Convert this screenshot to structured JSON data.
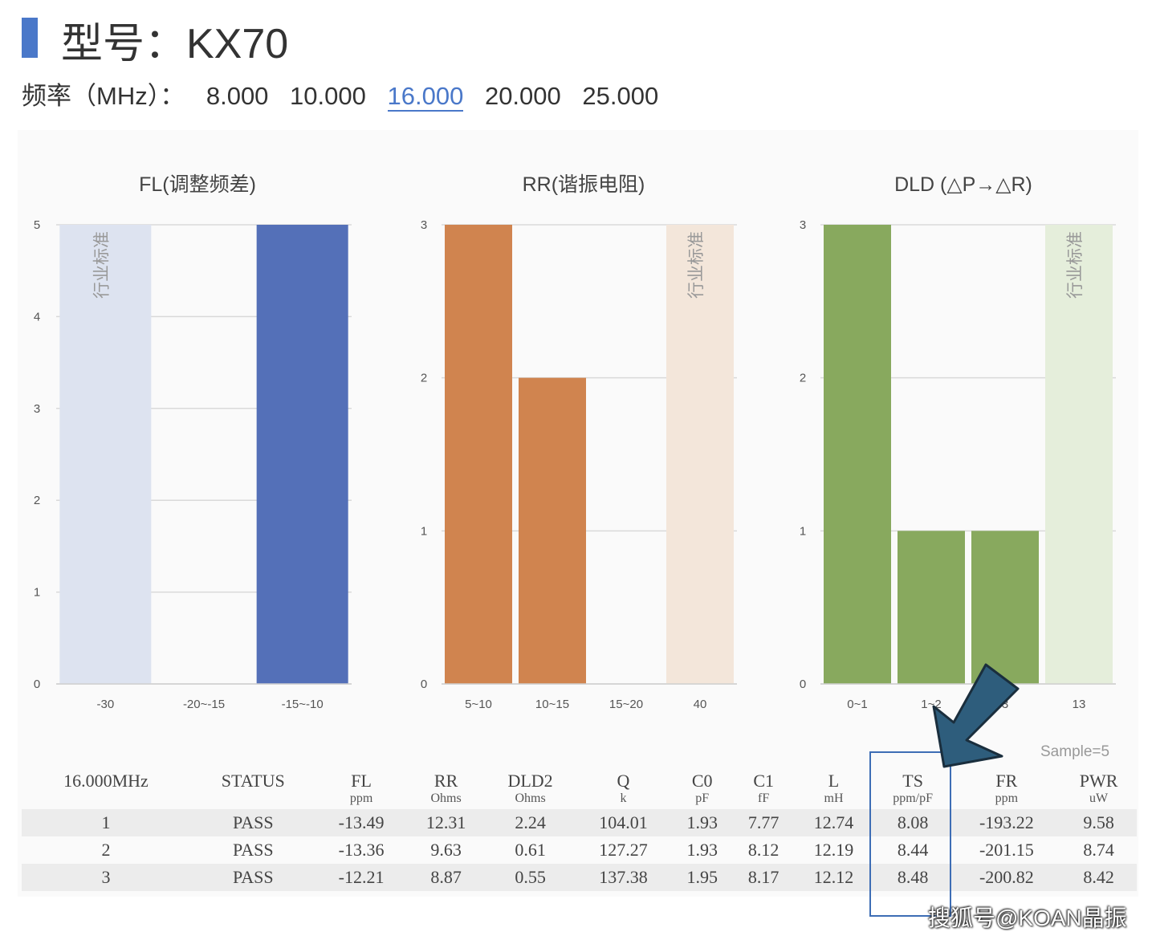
{
  "header": {
    "title": "型号：KX70",
    "freq_label": "频率（MHz）：",
    "frequencies": [
      "8.000",
      "10.000",
      "16.000",
      "20.000",
      "25.000"
    ],
    "selected_frequency": "16.000"
  },
  "chart_data": [
    {
      "type": "bar",
      "title": "FL(调整频差)",
      "categories": [
        "-30",
        "-20~-15",
        "-15~-10"
      ],
      "values": [
        5,
        0,
        5
      ],
      "ylim": [
        0,
        5
      ],
      "yticks": [
        "0",
        "1",
        "2",
        "3",
        "4",
        "5"
      ],
      "color": "#5470b8",
      "standard_category": "-30",
      "standard_label": "行业标准",
      "standard_color": "#dde3f0",
      "grid": true
    },
    {
      "type": "bar",
      "title": "RR(谐振电阻)",
      "categories": [
        "5~10",
        "10~15",
        "15~20",
        "40"
      ],
      "values": [
        3,
        2,
        0,
        3
      ],
      "ylim": [
        0,
        3
      ],
      "yticks": [
        "0",
        "1",
        "2",
        "3"
      ],
      "color": "#d0844f",
      "standard_category": "40",
      "standard_label": "行业标准",
      "standard_color": "#f3e6da",
      "grid": true
    },
    {
      "type": "bar",
      "title": "DLD (△P→△R)",
      "categories": [
        "0~1",
        "1~2",
        "3",
        "13"
      ],
      "values": [
        3,
        1,
        1,
        3
      ],
      "ylim": [
        0,
        3
      ],
      "yticks": [
        "0",
        "1",
        "2",
        "3"
      ],
      "color": "#88a95e",
      "standard_category": "13",
      "standard_label": "行业标准",
      "standard_color": "#e5eedb",
      "grid": true
    }
  ],
  "sample_label": "Sample=5",
  "table": {
    "headers": [
      "16.000MHz",
      "STATUS",
      "FL",
      "RR",
      "DLD2",
      "Q",
      "C0",
      "C1",
      "L",
      "TS",
      "FR",
      "PWR"
    ],
    "units": [
      "",
      "",
      "ppm",
      "Ohms",
      "Ohms",
      "k",
      "pF",
      "fF",
      "mH",
      "ppm/pF",
      "ppm",
      "uW"
    ],
    "rows": [
      [
        "1",
        "PASS",
        "-13.49",
        "12.31",
        "2.24",
        "104.01",
        "1.93",
        "7.77",
        "12.74",
        "8.08",
        "-193.22",
        "9.58"
      ],
      [
        "2",
        "PASS",
        "-13.36",
        "9.63",
        "0.61",
        "127.27",
        "1.93",
        "8.12",
        "12.19",
        "8.44",
        "-201.15",
        "8.74"
      ],
      [
        "3",
        "PASS",
        "-12.21",
        "8.87",
        "0.55",
        "137.38",
        "1.95",
        "8.17",
        "12.12",
        "8.48",
        "-200.82",
        "8.42"
      ]
    ]
  },
  "watermark": "搜狐号@KOAN晶振"
}
